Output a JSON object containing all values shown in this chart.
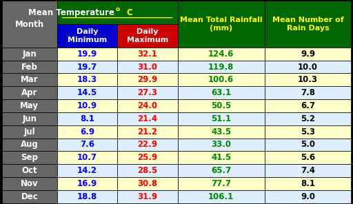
{
  "months": [
    "Jan",
    "Feb",
    "Mar",
    "Apr",
    "May",
    "Jun",
    "Jul",
    "Aug",
    "Sep",
    "Oct",
    "Nov",
    "Dec"
  ],
  "daily_min": [
    19.9,
    19.7,
    18.3,
    14.5,
    10.9,
    8.1,
    6.9,
    7.6,
    10.7,
    14.2,
    16.9,
    18.8
  ],
  "daily_max": [
    32.1,
    31.0,
    29.9,
    27.3,
    24.0,
    21.4,
    21.2,
    22.9,
    25.9,
    28.5,
    30.8,
    31.9
  ],
  "rainfall": [
    124.6,
    119.8,
    100.6,
    63.1,
    50.5,
    51.1,
    43.5,
    33.0,
    41.5,
    65.7,
    77.7,
    106.1
  ],
  "rain_days": [
    9.9,
    10.0,
    10.3,
    7.8,
    6.7,
    5.2,
    5.3,
    5.0,
    5.6,
    7.4,
    8.1,
    9.0
  ],
  "header_bg": "#006600",
  "header_text": "#FFFF00",
  "subheader_min_bg": "#0000CC",
  "subheader_max_bg": "#CC0000",
  "subheader_text": "#FFFFFF",
  "month_col_bg": "#666666",
  "month_col_text": "#FFFFFF",
  "row_bg_odd": "#FFFFCC",
  "row_bg_even": "#DDEEFF",
  "min_text_color": "#0000FF",
  "max_text_color": "#FF0000",
  "rainfall_text_color": "#008800",
  "rain_days_text_color": "#000000",
  "border_color": "#000000",
  "title_fontsize": 9,
  "cell_fontsize": 9
}
